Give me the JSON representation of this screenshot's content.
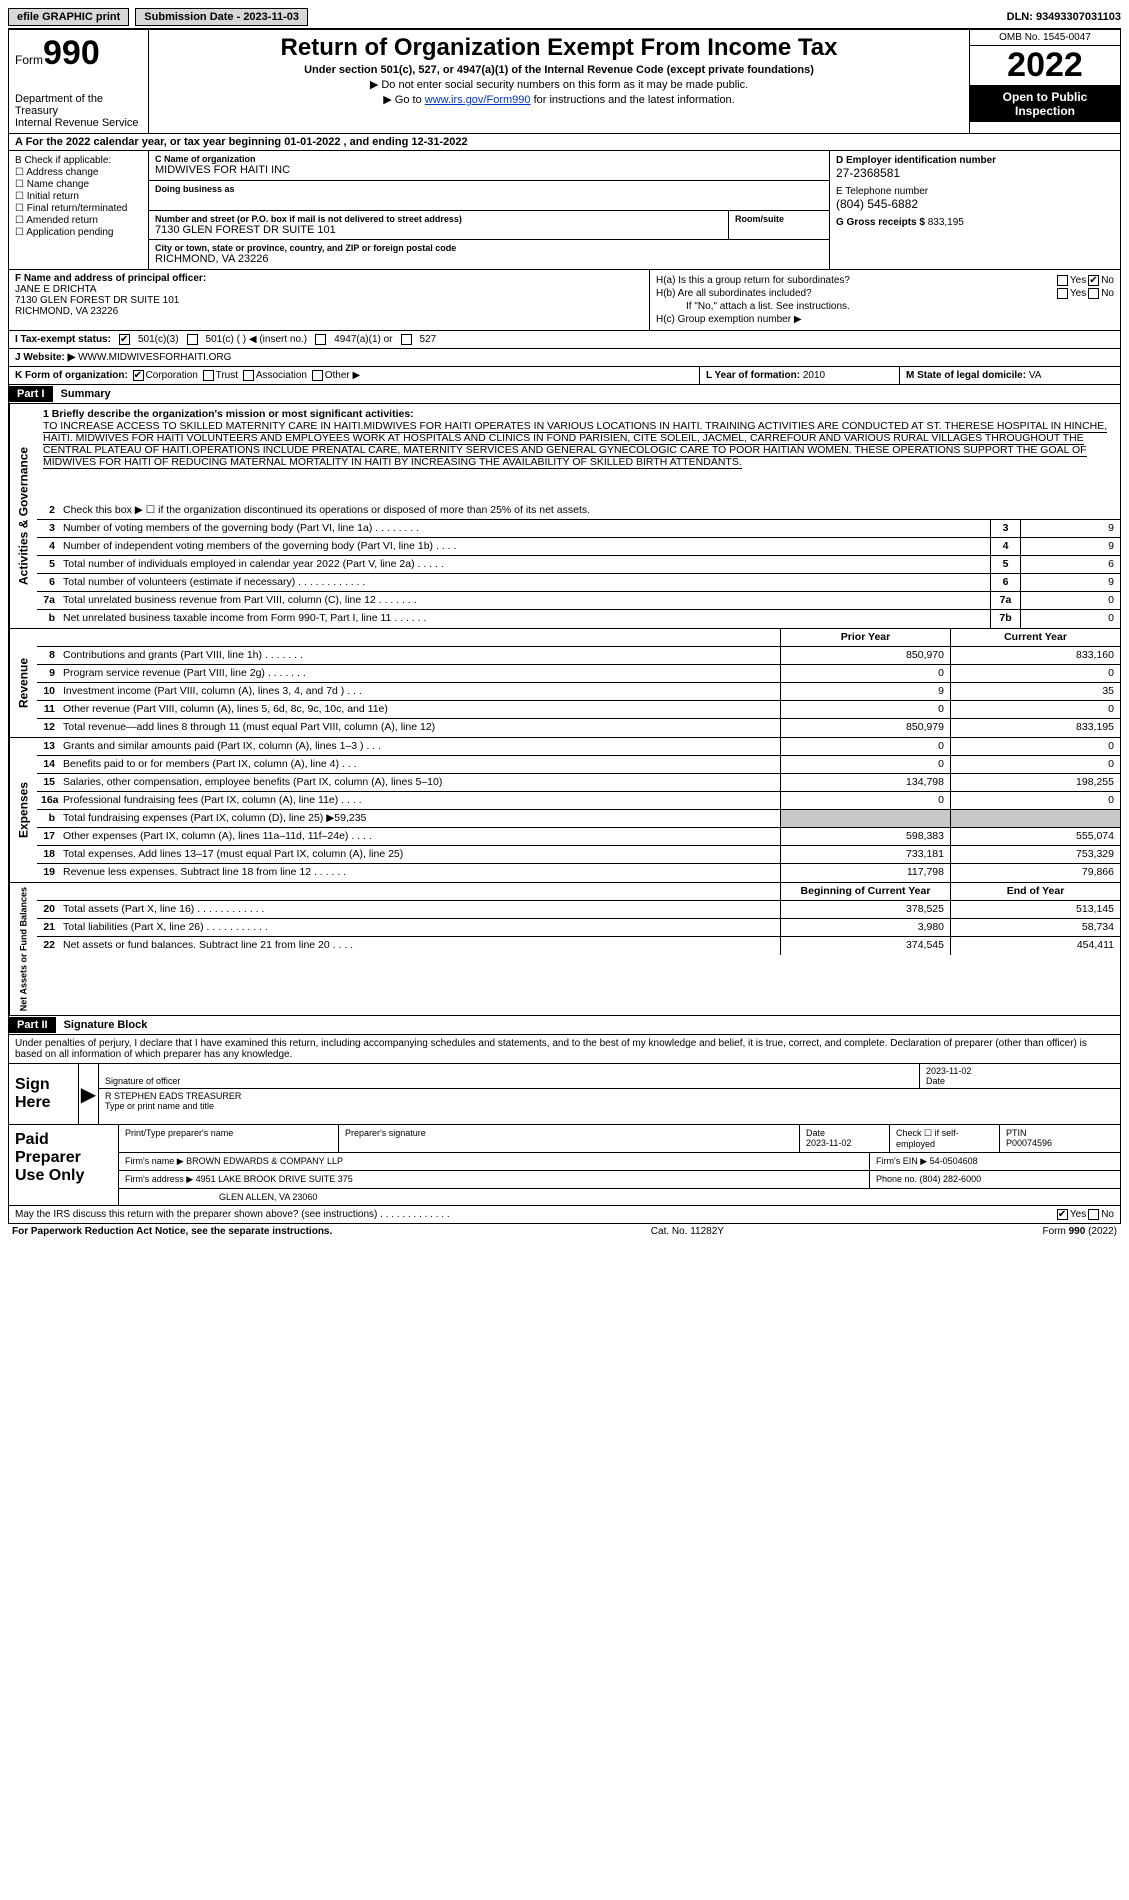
{
  "topbar": {
    "efile": "efile GRAPHIC print",
    "submission_label": "Submission Date - 2023-11-03",
    "dln": "DLN: 93493307031103"
  },
  "header": {
    "form_prefix": "Form",
    "form_number": "990",
    "dept": "Department of the Treasury",
    "irs": "Internal Revenue Service",
    "title": "Return of Organization Exempt From Income Tax",
    "subtitle": "Under section 501(c), 527, or 4947(a)(1) of the Internal Revenue Code (except private foundations)",
    "note1": "▶ Do not enter social security numbers on this form as it may be made public.",
    "note2_pre": "▶ Go to ",
    "note2_link": "www.irs.gov/Form990",
    "note2_post": " for instructions and the latest information.",
    "omb": "OMB No. 1545-0047",
    "year": "2022",
    "open": "Open to Public Inspection"
  },
  "rowA": {
    "text": "A For the 2022 calendar year, or tax year beginning 01-01-2022   , and ending 12-31-2022"
  },
  "sectionB": {
    "label": "B Check if applicable:",
    "items": [
      "Address change",
      "Name change",
      "Initial return",
      "Final return/terminated",
      "Amended return",
      "Application pending"
    ]
  },
  "sectionC": {
    "name_lbl": "C Name of organization",
    "name": "MIDWIVES FOR HAITI INC",
    "dba_lbl": "Doing business as",
    "dba": "",
    "street_lbl": "Number and street (or P.O. box if mail is not delivered to street address)",
    "street": "7130 GLEN FOREST DR SUITE 101",
    "room_lbl": "Room/suite",
    "city_lbl": "City or town, state or province, country, and ZIP or foreign postal code",
    "city": "RICHMOND, VA  23226"
  },
  "sectionD": {
    "d_lbl": "D Employer identification number",
    "ein": "27-2368581",
    "e_lbl": "E Telephone number",
    "phone": "(804) 545-6882",
    "g_lbl": "G Gross receipts $",
    "g_val": "833,195"
  },
  "sectionF": {
    "lbl": "F Name and address of principal officer:",
    "name": "JANE E DRICHTA",
    "addr1": "7130 GLEN FOREST DR SUITE 101",
    "addr2": "RICHMOND, VA  23226"
  },
  "sectionH": {
    "ha": "H(a)  Is this a group return for subordinates?",
    "hb": "H(b)  Are all subordinates included?",
    "hb_note": "If \"No,\" attach a list. See instructions.",
    "hc": "H(c)  Group exemption number ▶"
  },
  "rowI": {
    "lbl": "I  Tax-exempt status:",
    "opts": [
      "501(c)(3)",
      "501(c) (  ) ◀ (insert no.)",
      "4947(a)(1) or",
      "527"
    ]
  },
  "rowJ": {
    "lbl": "J  Website: ▶",
    "val": "WWW.MIDWIVESFORHAITI.ORG"
  },
  "rowK": {
    "lbl": "K Form of organization:",
    "opts": [
      "Corporation",
      "Trust",
      "Association",
      "Other ▶"
    ]
  },
  "rowL": {
    "lbl": "L Year of formation:",
    "val": "2010"
  },
  "rowM": {
    "lbl": "M State of legal domicile:",
    "val": "VA"
  },
  "part1": {
    "hdr": "Part I",
    "title": "Summary",
    "mission_lbl": "1   Briefly describe the organization's mission or most significant activities:",
    "mission": "TO INCREASE ACCESS TO SKILLED MATERNITY CARE IN HAITI.MIDWIVES FOR HAITI OPERATES IN VARIOUS LOCATIONS IN HAITI. TRAINING ACTIVITIES ARE CONDUCTED AT ST. THERESE HOSPITAL IN HINCHE, HAITI. MIDWIVES FOR HAITI VOLUNTEERS AND EMPLOYEES WORK AT HOSPITALS AND CLINICS IN FOND PARISIEN, CITE SOLEIL, JACMEL, CARREFOUR AND VARIOUS RURAL VILLAGES THROUGHOUT THE CENTRAL PLATEAU OF HAITI.OPERATIONS INCLUDE PRENATAL CARE, MATERNITY SERVICES AND GENERAL GYNECOLOGIC CARE TO POOR HAITIAN WOMEN. THESE OPERATIONS SUPPORT THE GOAL OF MIDWIVES FOR HAITI OF REDUCING MATERNAL MORTALITY IN HAITI BY INCREASING THE AVAILABILITY OF SKILLED BIRTH ATTENDANTS.",
    "line2": "Check this box ▶ ☐ if the organization discontinued its operations or disposed of more than 25% of its net assets."
  },
  "gov_lines": [
    {
      "n": "3",
      "d": "Number of voting members of the governing body (Part VI, line 1a)  .  .  .  .  .  .  .  .",
      "box": "3",
      "v": "9"
    },
    {
      "n": "4",
      "d": "Number of independent voting members of the governing body (Part VI, line 1b)  .  .  .  .",
      "box": "4",
      "v": "9"
    },
    {
      "n": "5",
      "d": "Total number of individuals employed in calendar year 2022 (Part V, line 2a)  .  .  .  .  .",
      "box": "5",
      "v": "6"
    },
    {
      "n": "6",
      "d": "Total number of volunteers (estimate if necessary)  .  .  .  .  .  .  .  .  .  .  .  .",
      "box": "6",
      "v": "9"
    },
    {
      "n": "7a",
      "d": "Total unrelated business revenue from Part VIII, column (C), line 12  .  .  .  .  .  .  .",
      "box": "7a",
      "v": "0"
    },
    {
      "n": "b",
      "d": "Net unrelated business taxable income from Form 990-T, Part I, line 11  .  .  .  .  .  .",
      "box": "7b",
      "v": "0"
    }
  ],
  "rev_hdr": {
    "py": "Prior Year",
    "cy": "Current Year"
  },
  "rev_lines": [
    {
      "n": "8",
      "d": "Contributions and grants (Part VIII, line 1h)  .  .  .  .  .  .  .",
      "py": "850,970",
      "cy": "833,160"
    },
    {
      "n": "9",
      "d": "Program service revenue (Part VIII, line 2g)  .  .  .  .  .  .  .",
      "py": "0",
      "cy": "0"
    },
    {
      "n": "10",
      "d": "Investment income (Part VIII, column (A), lines 3, 4, and 7d )  .  .  .",
      "py": "9",
      "cy": "35"
    },
    {
      "n": "11",
      "d": "Other revenue (Part VIII, column (A), lines 5, 6d, 8c, 9c, 10c, and 11e)",
      "py": "0",
      "cy": "0"
    },
    {
      "n": "12",
      "d": "Total revenue—add lines 8 through 11 (must equal Part VIII, column (A), line 12)",
      "py": "850,979",
      "cy": "833,195"
    }
  ],
  "exp_lines": [
    {
      "n": "13",
      "d": "Grants and similar amounts paid (Part IX, column (A), lines 1–3 )  .  .  .",
      "py": "0",
      "cy": "0"
    },
    {
      "n": "14",
      "d": "Benefits paid to or for members (Part IX, column (A), line 4)  .  .  .",
      "py": "0",
      "cy": "0"
    },
    {
      "n": "15",
      "d": "Salaries, other compensation, employee benefits (Part IX, column (A), lines 5–10)",
      "py": "134,798",
      "cy": "198,255"
    },
    {
      "n": "16a",
      "d": "Professional fundraising fees (Part IX, column (A), line 11e)  .  .  .  .",
      "py": "0",
      "cy": "0"
    },
    {
      "n": "b",
      "d": "Total fundraising expenses (Part IX, column (D), line 25) ▶59,235",
      "py": "grey",
      "cy": "grey"
    },
    {
      "n": "17",
      "d": "Other expenses (Part IX, column (A), lines 11a–11d, 11f–24e)  .  .  .  .",
      "py": "598,383",
      "cy": "555,074"
    },
    {
      "n": "18",
      "d": "Total expenses. Add lines 13–17 (must equal Part IX, column (A), line 25)",
      "py": "733,181",
      "cy": "753,329"
    },
    {
      "n": "19",
      "d": "Revenue less expenses. Subtract line 18 from line 12  .  .  .  .  .  .",
      "py": "117,798",
      "cy": "79,866"
    }
  ],
  "net_hdr": {
    "py": "Beginning of Current Year",
    "cy": "End of Year"
  },
  "net_lines": [
    {
      "n": "20",
      "d": "Total assets (Part X, line 16)  .  .  .  .  .  .  .  .  .  .  .  .",
      "py": "378,525",
      "cy": "513,145"
    },
    {
      "n": "21",
      "d": "Total liabilities (Part X, line 26)  .  .  .  .  .  .  .  .  .  .  .",
      "py": "3,980",
      "cy": "58,734"
    },
    {
      "n": "22",
      "d": "Net assets or fund balances. Subtract line 21 from line 20  .  .  .  .",
      "py": "374,545",
      "cy": "454,411"
    }
  ],
  "part2": {
    "hdr": "Part II",
    "title": "Signature Block",
    "decl": "Under penalties of perjury, I declare that I have examined this return, including accompanying schedules and statements, and to the best of my knowledge and belief, it is true, correct, and complete. Declaration of preparer (other than officer) is based on all information of which preparer has any knowledge."
  },
  "sign": {
    "lbl": "Sign Here",
    "sig_lbl": "Signature of officer",
    "date_lbl": "Date",
    "date": "2023-11-02",
    "name": "R STEPHEN EADS  TREASURER",
    "name_lbl": "Type or print name and title"
  },
  "prep": {
    "lbl": "Paid Preparer Use Only",
    "r1": {
      "c1": "Print/Type preparer's name",
      "c2": "Preparer's signature",
      "c3": "Date\n2023-11-02",
      "c4": "Check ☐ if self-employed",
      "c5": "PTIN\nP00074596"
    },
    "r2": {
      "c1": "Firm's name      ▶ BROWN EDWARDS & COMPANY LLP",
      "c2": "Firm's EIN ▶ 54-0504608"
    },
    "r3": {
      "c1": "Firm's address ▶ 4951 LAKE BROOK DRIVE SUITE 375",
      "c2": "Phone no. (804) 282-6000"
    },
    "r4": {
      "c1": "GLEN ALLEN, VA  23060"
    }
  },
  "discuss": "May the IRS discuss this return with the preparer shown above? (see instructions)  .  .  .  .  .  .  .  .  .  .  .  .  .",
  "footer": {
    "l": "For Paperwork Reduction Act Notice, see the separate instructions.",
    "c": "Cat. No. 11282Y",
    "r": "Form 990 (2022)"
  },
  "colors": {
    "black": "#000000",
    "grey_btn": "#d8d8d8",
    "grey_cell": "#c8c8c8",
    "link": "#0033cc"
  }
}
